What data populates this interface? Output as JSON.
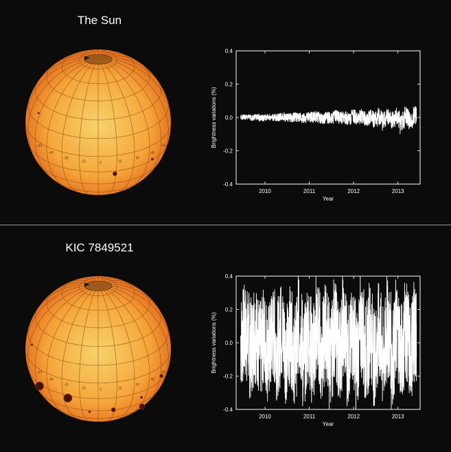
{
  "panels": [
    {
      "title": "The Sun",
      "spots": [
        {
          "lat": -18,
          "lon": 14,
          "r": 3
        },
        {
          "lat": -14,
          "lon": 50,
          "r": 1.6
        },
        {
          "lat": 22,
          "lon": -62,
          "r": 1.2
        }
      ]
    },
    {
      "title": "KIC 7849521",
      "spots": [
        {
          "lat": -18,
          "lon": -58,
          "r": 6
        },
        {
          "lat": -18,
          "lon": -26,
          "r": 6
        },
        {
          "lat": -30,
          "lon": 14,
          "r": 3
        },
        {
          "lat": -40,
          "lon": 52,
          "r": 4
        },
        {
          "lat": -10,
          "lon": 62,
          "r": 2.5
        },
        {
          "lat": -22,
          "lon": 40,
          "r": 1.6
        },
        {
          "lat": -32,
          "lon": -8,
          "r": 1.4
        },
        {
          "lat": 14,
          "lon": -70,
          "r": 1.3
        }
      ]
    }
  ],
  "globe": {
    "meridian_labels": [
      "-60",
      "-45",
      "-30",
      "-15",
      "0",
      "15",
      "30",
      "45",
      "60"
    ],
    "colors": {
      "center": "#f7d36b",
      "mid": "#f5a53a",
      "edge": "#e0651a",
      "grid": "#8a4a14",
      "spot": "#4a1208"
    }
  },
  "chart_data": [
    {
      "type": "line",
      "xlabel": "Year",
      "ylabel": "Brightness variations (%)",
      "xlim": [
        2009.35,
        2013.5
      ],
      "ylim": [
        -0.4,
        0.4
      ],
      "xticks": [
        2010,
        2011,
        2012,
        2013
      ],
      "yticks": [
        -0.4,
        -0.2,
        0.0,
        0.2,
        0.4
      ],
      "ytick_labels": [
        "-0.4",
        "-0.2",
        "0.0",
        "0.2",
        "0.4"
      ],
      "xtick_labels": [
        "2010",
        "2011",
        "2012",
        "2013"
      ],
      "series": [
        {
          "x": [
            2009.45,
            2009.55,
            2009.65,
            2009.75,
            2009.85,
            2009.95,
            2010.05,
            2010.15,
            2010.25,
            2010.35,
            2010.45,
            2010.55,
            2010.65,
            2010.75,
            2010.85,
            2010.95,
            2011.05,
            2011.15,
            2011.25,
            2011.35,
            2011.45,
            2011.55,
            2011.65,
            2011.75,
            2011.85,
            2011.95,
            2012.05,
            2012.15,
            2012.25,
            2012.35,
            2012.45,
            2012.55,
            2012.65,
            2012.75,
            2012.85,
            2012.95,
            2013.05,
            2013.15,
            2013.25,
            2013.35,
            2013.42
          ],
          "y": [
            0.0,
            0.01,
            -0.01,
            0.01,
            0.0,
            -0.02,
            0.01,
            0.0,
            -0.01,
            0.02,
            0.0,
            -0.01,
            0.01,
            0.0,
            -0.02,
            0.01,
            0.0,
            0.02,
            -0.03,
            0.01,
            -0.02,
            0.03,
            -0.01,
            0.02,
            -0.04,
            0.03,
            -0.02,
            0.04,
            -0.05,
            0.03,
            -0.06,
            0.04,
            -0.08,
            0.05,
            -0.06,
            0.03,
            -0.1,
            0.04,
            -0.07,
            0.06,
            0.02
          ],
          "amplitude": 0.05,
          "color": "#ffffff"
        }
      ]
    },
    {
      "type": "line",
      "xlabel": "Year",
      "ylabel": "Brightness variations (%)",
      "xlim": [
        2009.35,
        2013.5
      ],
      "ylim": [
        -0.4,
        0.4
      ],
      "xticks": [
        2010,
        2011,
        2012,
        2013
      ],
      "yticks": [
        -0.4,
        -0.2,
        0.0,
        0.2,
        0.4
      ],
      "ytick_labels": [
        "-0.4",
        "-0.2",
        "0.0",
        "0.2",
        "0.4"
      ],
      "xtick_labels": [
        "2010",
        "2011",
        "2012",
        "2013"
      ],
      "series": [
        {
          "x": [
            2009.45,
            2009.55,
            2009.65,
            2009.75,
            2009.85,
            2009.95,
            2010.05,
            2010.15,
            2010.25,
            2010.35,
            2010.45,
            2010.55,
            2010.65,
            2010.75,
            2010.85,
            2010.95,
            2011.05,
            2011.15,
            2011.25,
            2011.35,
            2011.45,
            2011.55,
            2011.65,
            2011.75,
            2011.85,
            2011.95,
            2012.05,
            2012.15,
            2012.25,
            2012.35,
            2012.45,
            2012.55,
            2012.65,
            2012.75,
            2012.85,
            2012.95,
            2013.05,
            2013.15,
            2013.25,
            2013.35,
            2013.42
          ],
          "y": [
            0.02,
            0.25,
            -0.2,
            0.3,
            -0.25,
            0.2,
            -0.3,
            0.28,
            -0.22,
            0.33,
            -0.3,
            0.25,
            -0.35,
            0.4,
            -0.38,
            0.3,
            -0.36,
            0.4,
            -0.3,
            0.35,
            -0.4,
            0.38,
            -0.32,
            0.4,
            -0.35,
            0.3,
            -0.4,
            0.4,
            -0.33,
            0.36,
            -0.38,
            0.3,
            -0.35,
            0.4,
            -0.4,
            0.38,
            -0.3,
            0.36,
            -0.28,
            0.3,
            -0.15
          ],
          "amplitude": 0.3,
          "color": "#ffffff"
        }
      ]
    }
  ]
}
